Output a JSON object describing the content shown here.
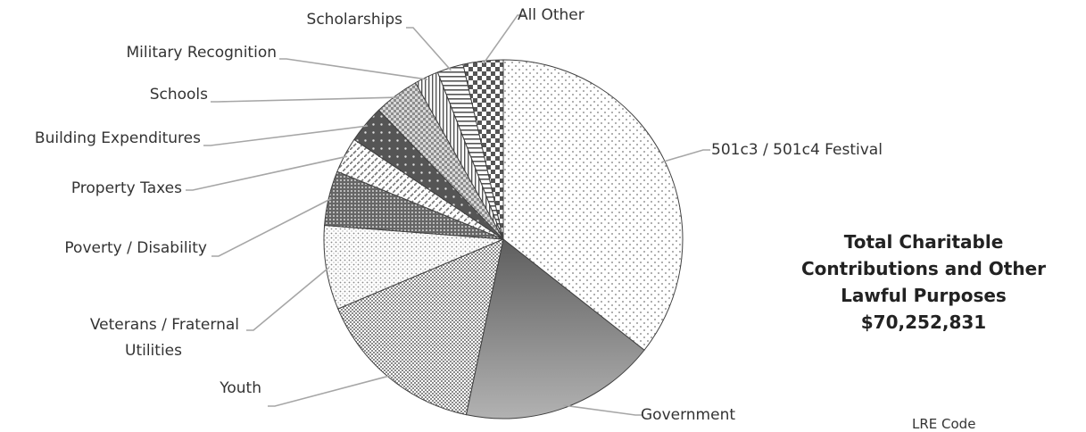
{
  "chart_data": {
    "type": "pie",
    "title": "",
    "slices": [
      {
        "label": "501c3 / 501c4 Festival",
        "value": 37.6,
        "pattern": "dots-sparse"
      },
      {
        "label": "Government",
        "value": 18.7,
        "pattern": "gradient"
      },
      {
        "label": "Youth",
        "value": 16.2,
        "pattern": "checker-fine"
      },
      {
        "label": "Veterans / Fraternal Utilities",
        "value": 8.0,
        "pattern": "dots-dense"
      },
      {
        "label": "Poverty / Disability",
        "value": 5.2,
        "pattern": "dark-grid"
      },
      {
        "label": "Property Taxes",
        "value": 3.4,
        "pattern": "diagonal-dashes"
      },
      {
        "label": "Building Expenditures",
        "value": 3.6,
        "pattern": "dark-dots"
      },
      {
        "label": "Schools",
        "value": 4.3,
        "pattern": "checker-medium"
      },
      {
        "label": "Military Recognition",
        "value": 2.3,
        "pattern": "vertical-lines"
      },
      {
        "label": "Scholarships",
        "value": 2.5,
        "pattern": "horizontal-lines"
      },
      {
        "label": "All Other",
        "value": 3.8,
        "pattern": "checker-large"
      }
    ],
    "legend": "none"
  },
  "total_box": {
    "line1": "Total Charitable",
    "line2": "Contributions and Other",
    "line3": "Lawful Purposes",
    "amount": "$70,252,831"
  },
  "footer_text": "LRE Code"
}
